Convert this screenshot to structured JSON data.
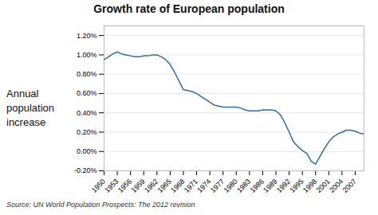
{
  "chart_data": {
    "type": "line",
    "title": "Growth rate of European population",
    "ylabel": "Annual\npopulation\nincrease",
    "source": "Source: UN World Population Prospects: The 2012 revision",
    "color": "#2E6DA4",
    "x": [
      1950,
      1951,
      1952,
      1953,
      1954,
      1955,
      1956,
      1957,
      1958,
      1959,
      1960,
      1961,
      1962,
      1963,
      1964,
      1965,
      1966,
      1967,
      1968,
      1969,
      1970,
      1971,
      1972,
      1973,
      1974,
      1975,
      1976,
      1977,
      1978,
      1979,
      1980,
      1981,
      1982,
      1983,
      1984,
      1985,
      1986,
      1987,
      1988,
      1989,
      1990,
      1991,
      1992,
      1993,
      1994,
      1995,
      1996,
      1997,
      1998,
      1999,
      2000,
      2001,
      2002,
      2003,
      2004,
      2005,
      2006,
      2007,
      2008,
      2009
    ],
    "values": [
      0.0095,
      0.0098,
      0.0101,
      0.0103,
      0.0101,
      0.01,
      0.0099,
      0.0098,
      0.0098,
      0.0099,
      0.0099,
      0.01,
      0.01,
      0.0098,
      0.0095,
      0.009,
      0.0082,
      0.0073,
      0.0064,
      0.0063,
      0.0062,
      0.006,
      0.0057,
      0.0054,
      0.0051,
      0.0048,
      0.0047,
      0.0046,
      0.0046,
      0.0046,
      0.0046,
      0.0045,
      0.0043,
      0.0042,
      0.0042,
      0.0042,
      0.0043,
      0.0043,
      0.0043,
      0.0042,
      0.0038,
      0.003,
      0.002,
      0.001,
      0.0005,
      0.0001,
      -0.0002,
      -0.001,
      -0.0013,
      -0.0005,
      0.0003,
      0.001,
      0.0015,
      0.0018,
      0.002,
      0.0022,
      0.0022,
      0.0021,
      0.0019,
      0.0018
    ],
    "xlim": [
      1950,
      2009
    ],
    "xticks": [
      1950,
      1953,
      1956,
      1959,
      1962,
      1965,
      1968,
      1971,
      1974,
      1977,
      1980,
      1983,
      1986,
      1989,
      1992,
      1995,
      1998,
      2001,
      2004,
      2007
    ],
    "ylim": [
      -0.002,
      0.013
    ],
    "yticks": [
      {
        "value": -0.002,
        "label": "-0.20%"
      },
      {
        "value": 0.0,
        "label": "0.00%"
      },
      {
        "value": 0.002,
        "label": "0.20%"
      },
      {
        "value": 0.004,
        "label": "0.40%"
      },
      {
        "value": 0.006,
        "label": "0.60%"
      },
      {
        "value": 0.008,
        "label": "0.80%"
      },
      {
        "value": 0.01,
        "label": "1.00%"
      },
      {
        "value": 0.012,
        "label": "1.20%"
      }
    ],
    "grid": true
  }
}
